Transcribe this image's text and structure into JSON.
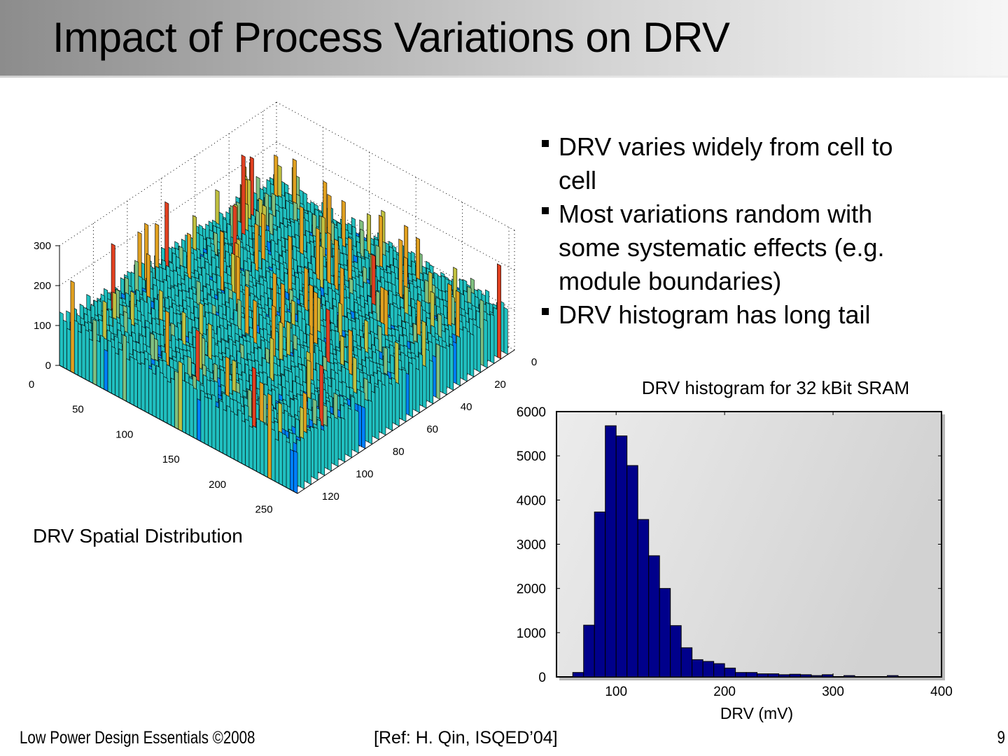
{
  "slide": {
    "title": "Impact of Process Variations on DRV",
    "bullets": [
      {
        "line1": " DRV varies widely from cell to",
        "line2": "cell"
      },
      {
        "line1": " Most variations random with",
        "line2": "some systematic effects (e.g.",
        "line3": "module boundaries)"
      },
      {
        "line1": " DRV histogram has long tail"
      }
    ],
    "caption_3d": "DRV Spatial Distribution",
    "footer": {
      "left": "Low Power Design Essentials ©2008",
      "reference": "[Ref: H. Qin, ISQED’04]",
      "page_number": "9"
    }
  },
  "chart_data": [
    {
      "type": "bar",
      "title": "DRV histogram for 32 kBit SRAM",
      "xlabel": "DRV (mV)",
      "ylabel": "",
      "xlim": [
        45,
        400
      ],
      "ylim": [
        0,
        6000
      ],
      "x_ticks": [
        100,
        200,
        300,
        400
      ],
      "y_ticks": [
        0,
        1000,
        2000,
        3000,
        4000,
        5000,
        6000
      ],
      "grid": false,
      "bar_color": "#00008b",
      "bin_width": 10,
      "bin_starts": [
        60,
        70,
        80,
        90,
        100,
        110,
        120,
        130,
        140,
        150,
        160,
        170,
        180,
        190,
        200,
        210,
        220,
        230,
        240,
        250,
        260,
        270,
        280,
        290,
        300,
        310,
        320,
        330,
        340,
        350
      ],
      "values": [
        100,
        1170,
        3730,
        5680,
        5450,
        4780,
        3560,
        2740,
        2000,
        1160,
        660,
        390,
        350,
        300,
        200,
        100,
        100,
        70,
        70,
        50,
        60,
        50,
        30,
        50,
        0,
        30,
        0,
        0,
        0,
        30
      ]
    },
    {
      "type": "surface3d",
      "title": "DRV Spatial Distribution",
      "x_ticks": [
        0,
        50,
        100,
        150,
        200,
        250
      ],
      "y_ticks": [
        0,
        20,
        40,
        60,
        80,
        100,
        120
      ],
      "z_ticks": [
        0,
        100,
        200,
        300
      ],
      "z_range": [
        0,
        300
      ],
      "description": "Random 3D bar surface of DRV per cell over 256x128 array, baseline ~100 with spikes up to ~300",
      "colormap": [
        "#00008f",
        "#0080ff",
        "#20c0c0",
        "#80c080",
        "#c0c040",
        "#e0a020",
        "#e04020"
      ]
    }
  ]
}
